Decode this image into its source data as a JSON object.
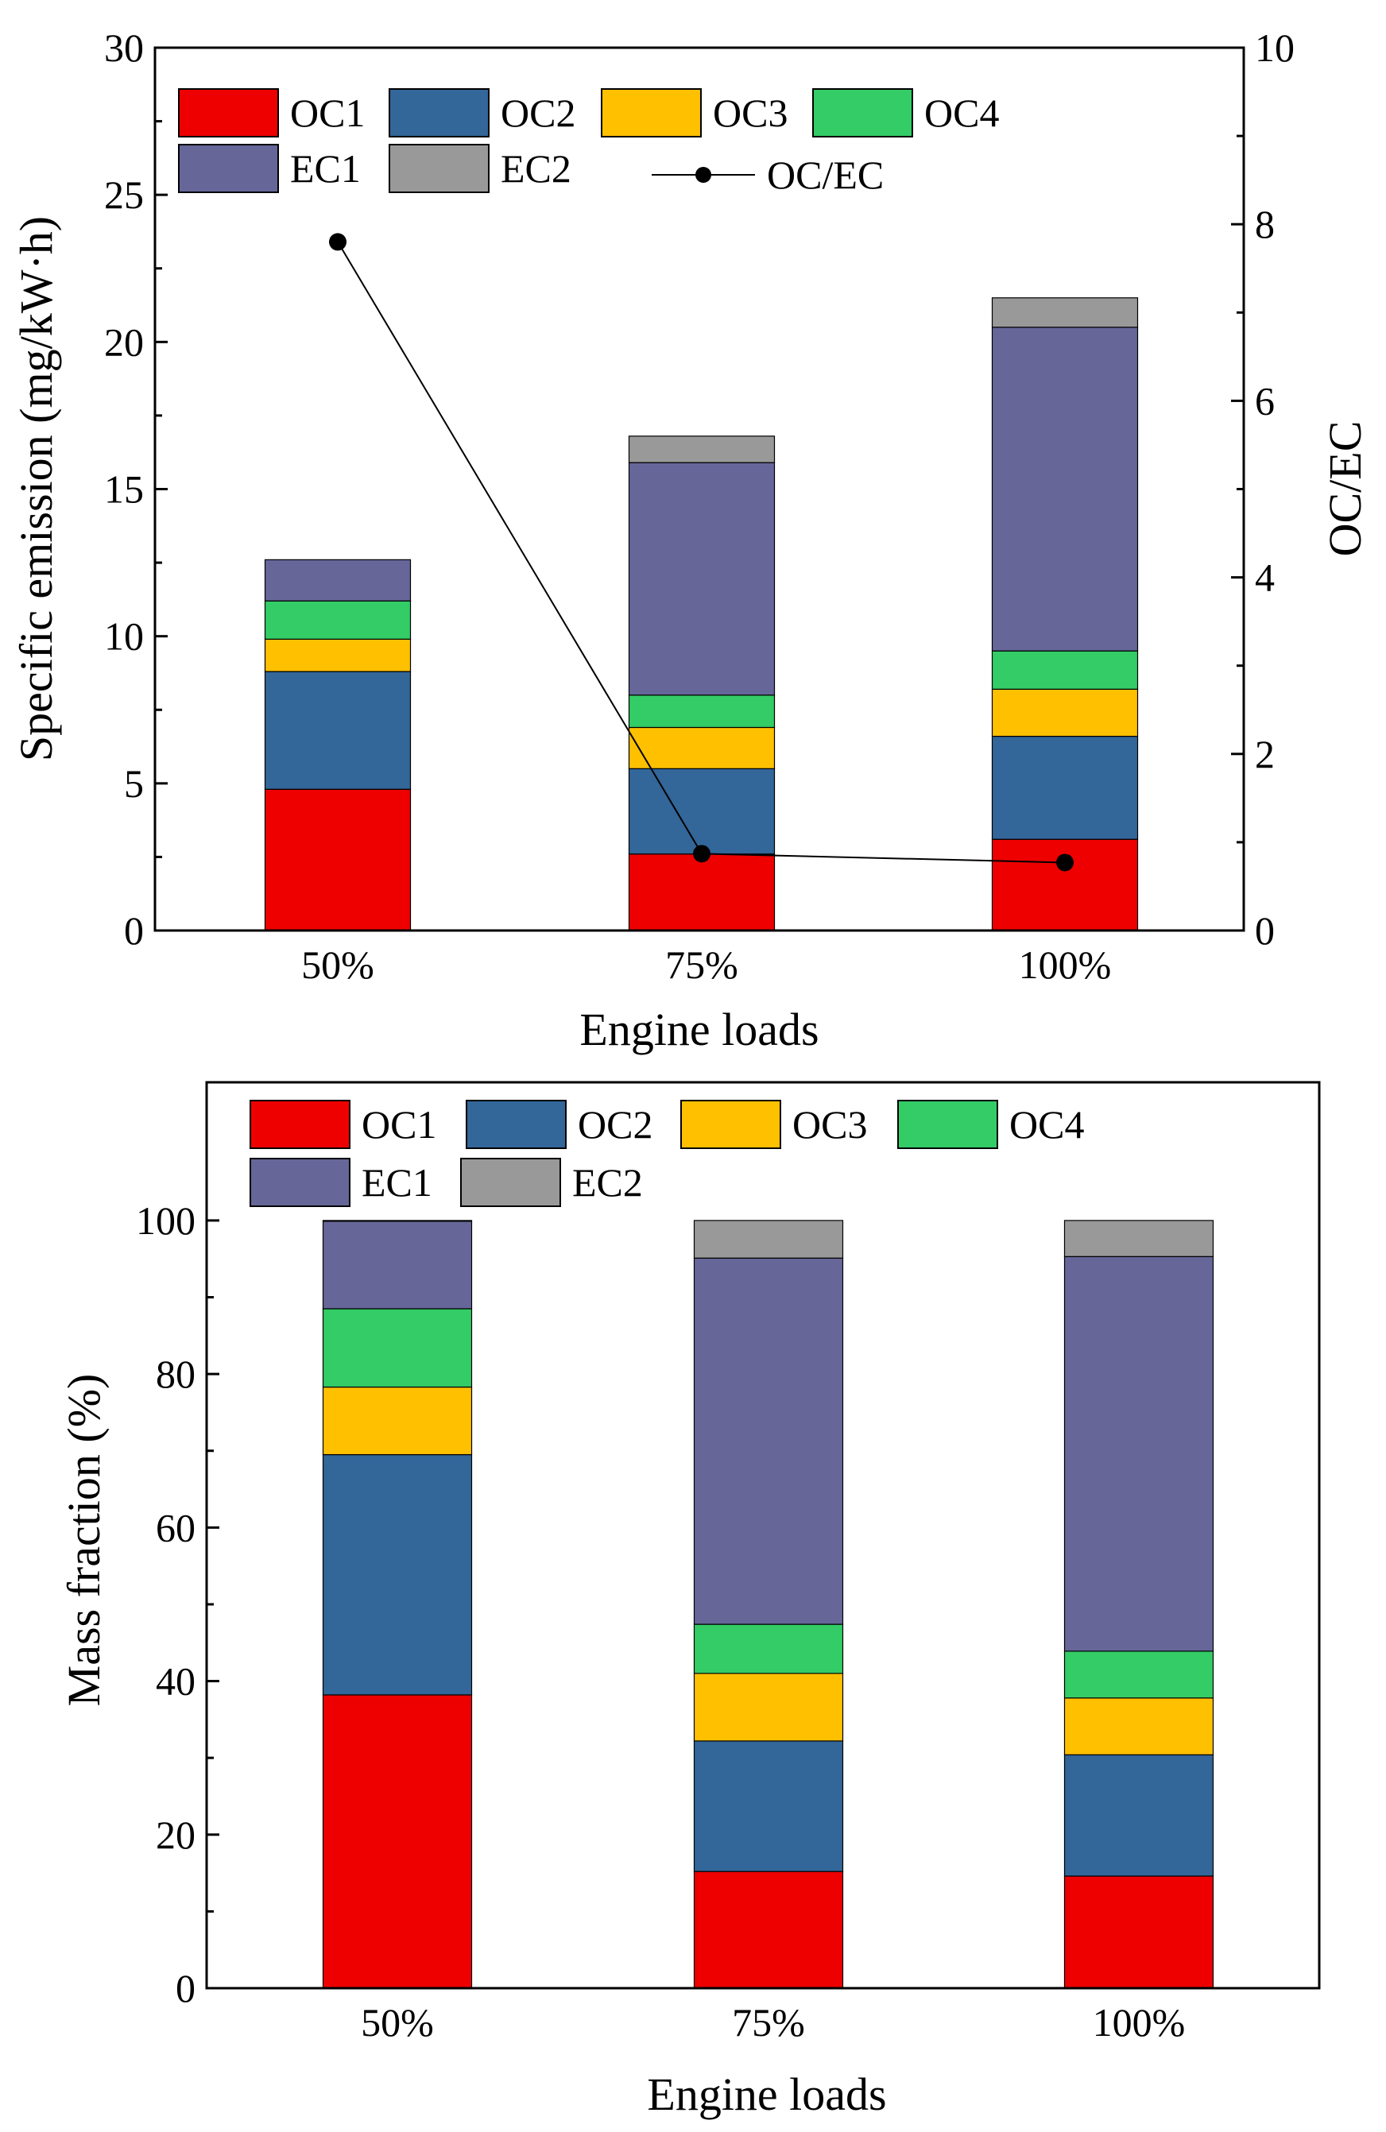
{
  "figure": {
    "colors": {
      "OC1": "#ee0000",
      "OC2": "#336699",
      "OC3": "#ffc000",
      "OC4": "#33cc66",
      "EC1": "#666699",
      "EC2": "#999999",
      "ratio": "#000000"
    }
  },
  "chart_data": [
    {
      "type": "bar",
      "stacked": true,
      "title": "",
      "xlabel": "Engine loads",
      "ylabel": "Specific emission (mg/kW·h)",
      "y2label": "OC/EC",
      "ylim": [
        0,
        30
      ],
      "y2lim": [
        0,
        10
      ],
      "yticks": [
        "0",
        "5",
        "10",
        "15",
        "20",
        "25",
        "30"
      ],
      "y2ticks": [
        "0",
        "2",
        "4",
        "6",
        "8",
        "10"
      ],
      "categories": [
        "50%",
        "75%",
        "100%"
      ],
      "series": [
        {
          "name": "OC1",
          "values": [
            4.8,
            2.6,
            3.1
          ]
        },
        {
          "name": "OC2",
          "values": [
            4.0,
            2.9,
            3.5
          ]
        },
        {
          "name": "OC3",
          "values": [
            1.1,
            1.4,
            1.6
          ]
        },
        {
          "name": "OC4",
          "values": [
            1.3,
            1.1,
            1.3
          ]
        },
        {
          "name": "EC1",
          "values": [
            1.4,
            7.9,
            11.0
          ]
        },
        {
          "name": "EC2",
          "values": [
            0.0,
            0.9,
            1.0
          ]
        }
      ],
      "line_series": {
        "name": "OC/EC",
        "axis": "right",
        "values": [
          7.8,
          0.87,
          0.77
        ]
      },
      "legend": [
        "OC1",
        "OC2",
        "OC3",
        "OC4",
        "EC1",
        "EC2",
        "OC/EC"
      ],
      "legend_position": "top-left"
    },
    {
      "type": "bar",
      "stacked": true,
      "title": "",
      "xlabel": "Engine loads",
      "ylabel": "Mass fraction (%)",
      "ylim": [
        0,
        118
      ],
      "yticks": [
        "0",
        "20",
        "40",
        "60",
        "80",
        "100"
      ],
      "categories": [
        "50%",
        "75%",
        "100%"
      ],
      "series": [
        {
          "name": "OC1",
          "values": [
            38.2,
            15.2,
            14.6
          ]
        },
        {
          "name": "OC2",
          "values": [
            31.3,
            17.0,
            15.8
          ]
        },
        {
          "name": "OC3",
          "values": [
            8.8,
            8.8,
            7.4
          ]
        },
        {
          "name": "OC4",
          "values": [
            10.2,
            6.4,
            6.1
          ]
        },
        {
          "name": "EC1",
          "values": [
            11.4,
            47.7,
            51.4
          ]
        },
        {
          "name": "EC2",
          "values": [
            0.1,
            4.9,
            4.7
          ]
        }
      ],
      "legend": [
        "OC1",
        "OC2",
        "OC3",
        "OC4",
        "EC1",
        "EC2"
      ],
      "legend_position": "top-left"
    }
  ]
}
